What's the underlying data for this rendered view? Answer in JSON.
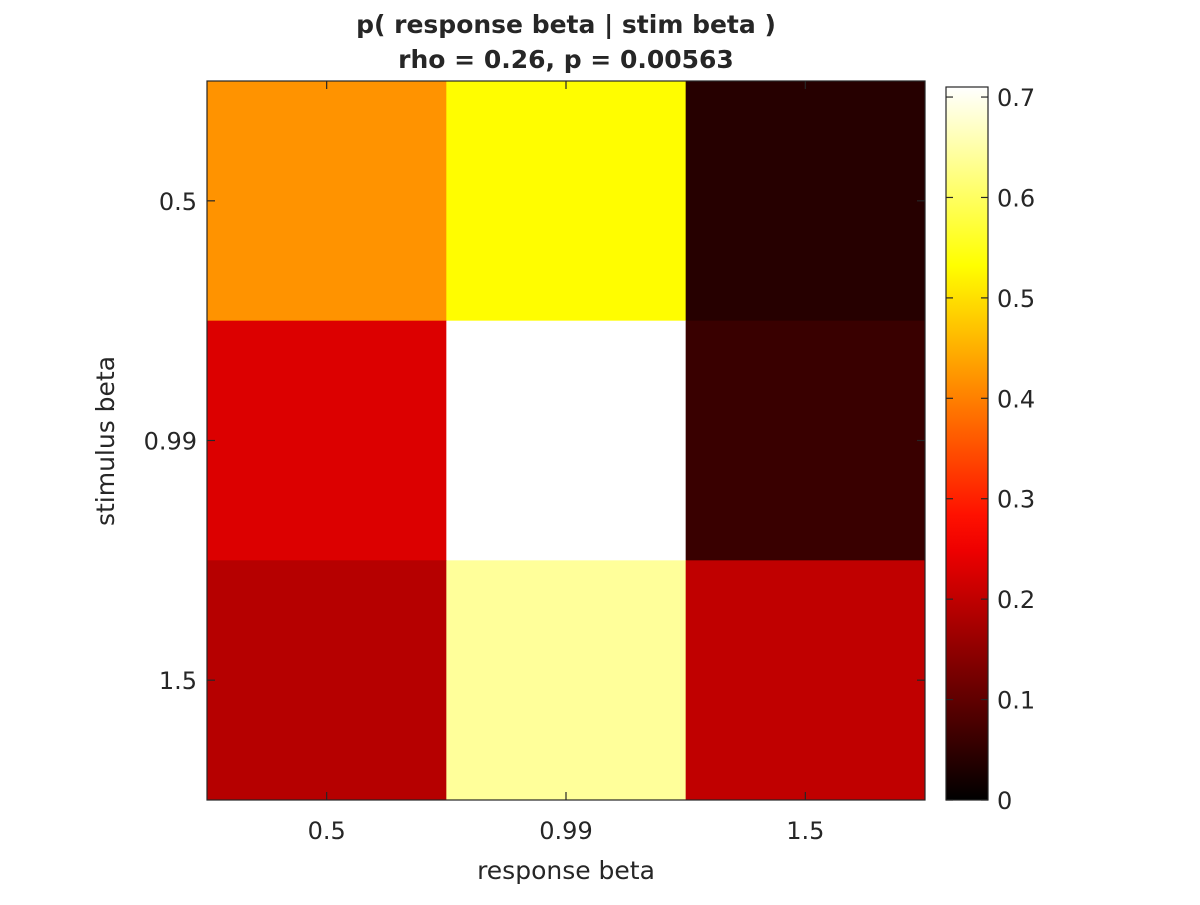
{
  "chart_data": {
    "type": "heatmap",
    "title": "p( response beta | stim beta )",
    "subtitle": "rho = 0.26, p = 0.00563",
    "xlabel": "response beta",
    "ylabel": "stimulus beta",
    "x_categories": [
      "0.5",
      "0.99",
      "1.5"
    ],
    "y_categories": [
      "0.5",
      "0.99",
      "1.5"
    ],
    "values": [
      [
        0.42,
        0.53,
        0.04
      ],
      [
        0.23,
        0.71,
        0.06
      ],
      [
        0.19,
        0.64,
        0.2
      ]
    ],
    "colorbar": {
      "colormap": "hot",
      "range": [
        0,
        0.71
      ],
      "ticks": [
        0,
        0.1,
        0.2,
        0.3,
        0.4,
        0.5,
        0.6,
        0.7
      ],
      "tick_labels": [
        "0",
        "0.1",
        "0.2",
        "0.3",
        "0.4",
        "0.5",
        "0.6",
        "0.7"
      ]
    }
  }
}
